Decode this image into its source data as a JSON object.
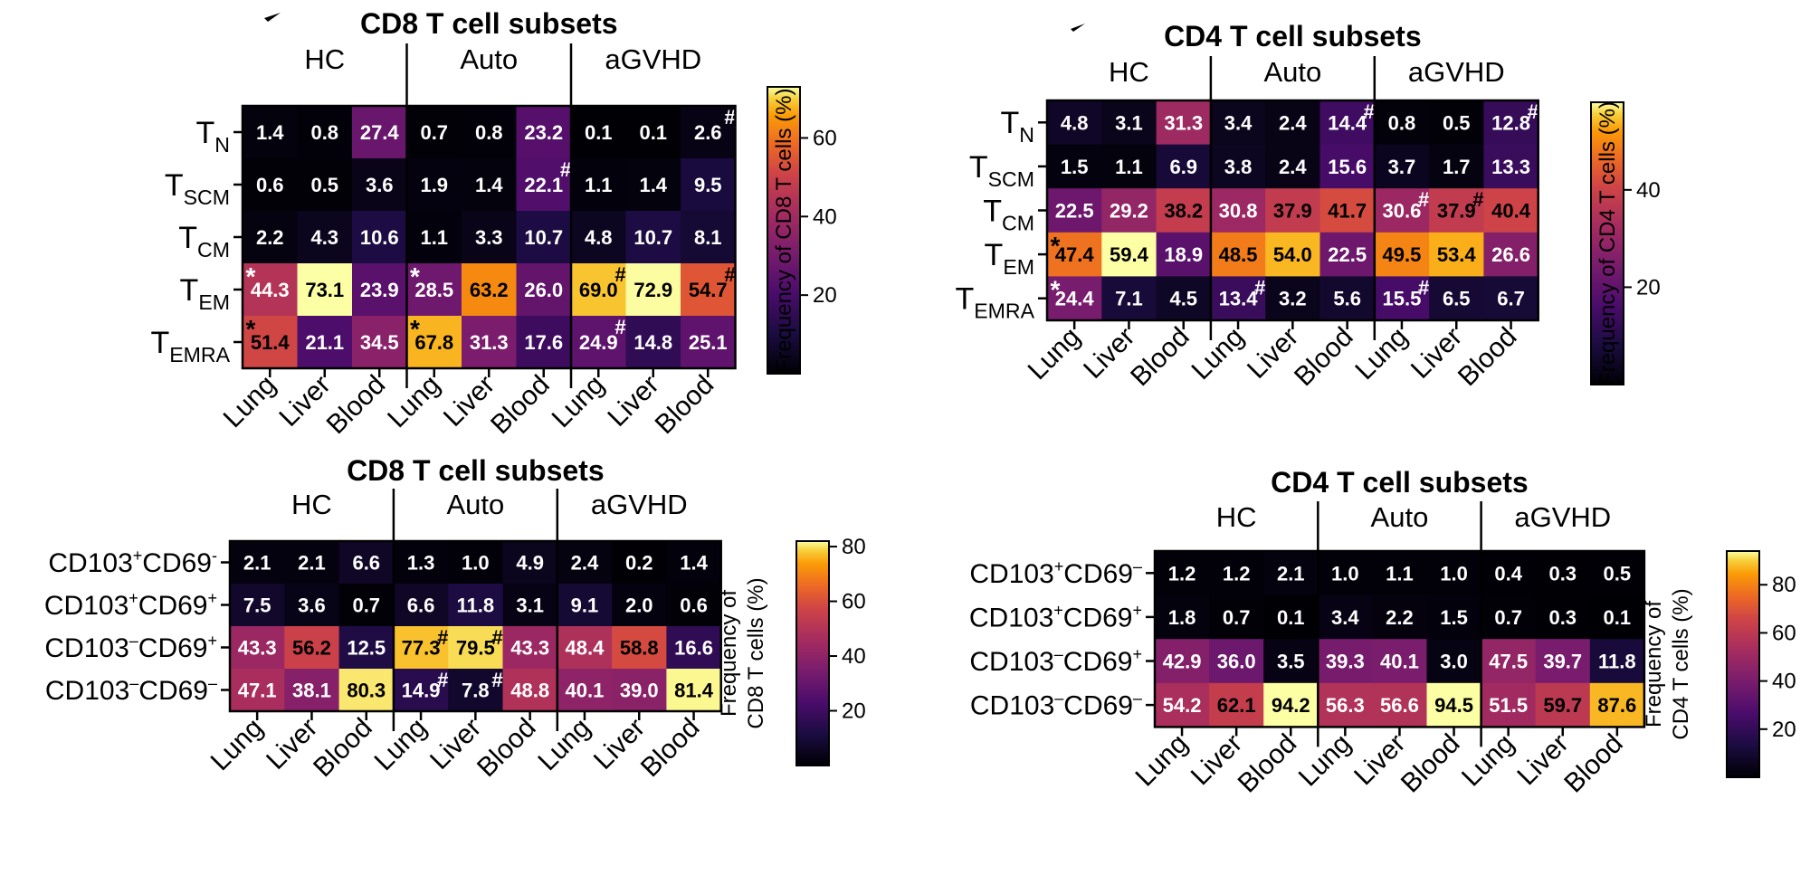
{
  "chart_data": [
    {
      "type": "heatmap",
      "title": "CD8 T cell subsets",
      "groups": [
        "HC",
        "Auto",
        "aGVHD"
      ],
      "categories": [
        "Lung",
        "Liver",
        "Blood",
        "Lung",
        "Liver",
        "Blood",
        "Lung",
        "Liver",
        "Blood"
      ],
      "row_labels": [
        {
          "base": "T",
          "sub": "N",
          "sup": ""
        },
        {
          "base": "T",
          "sub": "SCM",
          "sup": ""
        },
        {
          "base": "T",
          "sub": "CM",
          "sup": ""
        },
        {
          "base": "T",
          "sub": "EM",
          "sup": ""
        },
        {
          "base": "T",
          "sub": "EMRA",
          "sup": ""
        }
      ],
      "values": [
        [
          1.4,
          0.8,
          27.4,
          0.7,
          0.8,
          23.2,
          0.1,
          0.1,
          2.6
        ],
        [
          0.6,
          0.5,
          3.6,
          1.9,
          1.4,
          22.1,
          1.1,
          1.4,
          9.5
        ],
        [
          2.2,
          4.3,
          10.6,
          1.1,
          3.3,
          10.7,
          4.8,
          10.7,
          8.1
        ],
        [
          44.3,
          73.1,
          23.9,
          28.5,
          63.2,
          26.0,
          69.0,
          72.9,
          54.7
        ],
        [
          51.4,
          21.1,
          34.5,
          67.8,
          31.3,
          17.6,
          24.9,
          14.8,
          25.1
        ]
      ],
      "markers": [
        {
          "row": 0,
          "col": 8,
          "symbol": "#"
        },
        {
          "row": 1,
          "col": 5,
          "symbol": "#"
        },
        {
          "row": 3,
          "col": 0,
          "symbol": "*"
        },
        {
          "row": 3,
          "col": 3,
          "symbol": "*"
        },
        {
          "row": 3,
          "col": 6,
          "symbol": "#"
        },
        {
          "row": 3,
          "col": 8,
          "symbol": "#"
        },
        {
          "row": 4,
          "col": 0,
          "symbol": "*"
        },
        {
          "row": 4,
          "col": 3,
          "symbol": "*"
        },
        {
          "row": 4,
          "col": 6,
          "symbol": "#"
        }
      ],
      "colorbar": {
        "label_lines": [
          "Frequency of CD8 T cells (%)"
        ],
        "range": [
          0,
          73
        ],
        "ticks": [
          20,
          40,
          60
        ]
      }
    },
    {
      "type": "heatmap",
      "title": "CD4 T cell subsets",
      "groups": [
        "HC",
        "Auto",
        "aGVHD"
      ],
      "categories": [
        "Lung",
        "Liver",
        "Blood",
        "Lung",
        "Liver",
        "Blood",
        "Lung",
        "Liver",
        "Blood"
      ],
      "row_labels": [
        {
          "base": "T",
          "sub": "N",
          "sup": ""
        },
        {
          "base": "T",
          "sub": "SCM",
          "sup": ""
        },
        {
          "base": "T",
          "sub": "CM",
          "sup": ""
        },
        {
          "base": "T",
          "sub": "EM",
          "sup": ""
        },
        {
          "base": "T",
          "sub": "EMRA",
          "sup": ""
        }
      ],
      "values": [
        [
          4.8,
          3.1,
          31.3,
          3.4,
          2.4,
          14.4,
          0.8,
          0.5,
          12.8
        ],
        [
          1.5,
          1.1,
          6.9,
          3.8,
          2.4,
          15.6,
          3.7,
          1.7,
          13.3
        ],
        [
          22.5,
          29.2,
          38.2,
          30.8,
          37.9,
          41.7,
          30.6,
          37.9,
          40.4
        ],
        [
          47.4,
          59.4,
          18.9,
          48.5,
          54.0,
          22.5,
          49.5,
          53.4,
          26.6
        ],
        [
          24.4,
          7.1,
          4.5,
          13.4,
          3.2,
          5.6,
          15.5,
          6.5,
          6.7
        ]
      ],
      "markers": [
        {
          "row": 0,
          "col": 5,
          "symbol": "#"
        },
        {
          "row": 0,
          "col": 8,
          "symbol": "#"
        },
        {
          "row": 2,
          "col": 6,
          "symbol": "#"
        },
        {
          "row": 2,
          "col": 7,
          "symbol": "#"
        },
        {
          "row": 3,
          "col": 0,
          "symbol": "*"
        },
        {
          "row": 4,
          "col": 0,
          "symbol": "*"
        },
        {
          "row": 4,
          "col": 3,
          "symbol": "#"
        },
        {
          "row": 4,
          "col": 6,
          "symbol": "#"
        }
      ],
      "colorbar": {
        "label_lines": [
          "Frequency of CD4 T cells (%)"
        ],
        "range": [
          0,
          58
        ],
        "ticks": [
          20,
          40
        ]
      }
    },
    {
      "type": "heatmap",
      "title": "CD8 T cell subsets",
      "groups": [
        "HC",
        "Auto",
        "aGVHD"
      ],
      "categories": [
        "Lung",
        "Liver",
        "Blood",
        "Lung",
        "Liver",
        "Blood",
        "Lung",
        "Liver",
        "Blood"
      ],
      "row_labels": [
        {
          "base": "CD103",
          "sup": "+",
          "base2": "CD69",
          "sup2": "-"
        },
        {
          "base": "CD103",
          "sup": "+",
          "base2": "CD69",
          "sup2": "+"
        },
        {
          "base": "CD103",
          "sup": "–",
          "base2": "CD69",
          "sup2": "+"
        },
        {
          "base": "CD103",
          "sup": "–",
          "base2": "CD69",
          "sup2": "–"
        }
      ],
      "values": [
        [
          2.1,
          2.1,
          6.6,
          1.3,
          1.0,
          4.9,
          2.4,
          0.2,
          1.4
        ],
        [
          7.5,
          3.6,
          0.7,
          6.6,
          11.8,
          3.1,
          9.1,
          2.0,
          0.6
        ],
        [
          43.3,
          56.2,
          12.5,
          77.3,
          79.5,
          43.3,
          48.4,
          58.8,
          16.6
        ],
        [
          47.1,
          38.1,
          80.3,
          14.9,
          7.8,
          48.8,
          40.1,
          39.0,
          81.4
        ]
      ],
      "markers": [
        {
          "row": 2,
          "col": 3,
          "symbol": "#"
        },
        {
          "row": 2,
          "col": 4,
          "symbol": "#"
        },
        {
          "row": 3,
          "col": 3,
          "symbol": "#"
        },
        {
          "row": 3,
          "col": 4,
          "symbol": "#"
        }
      ],
      "colorbar": {
        "label_lines": [
          "Frequency of",
          "CD8 T cells (%)"
        ],
        "range": [
          0,
          82
        ],
        "ticks": [
          20,
          40,
          60,
          80
        ]
      }
    },
    {
      "type": "heatmap",
      "title": "CD4 T cell subsets",
      "groups": [
        "HC",
        "Auto",
        "aGVHD"
      ],
      "categories": [
        "Lung",
        "Liver",
        "Blood",
        "Lung",
        "Liver",
        "Blood",
        "Lung",
        "Liver",
        "Blood"
      ],
      "row_labels": [
        {
          "base": "CD103",
          "sup": "+",
          "base2": "CD69",
          "sup2": "–"
        },
        {
          "base": "CD103",
          "sup": "+",
          "base2": "CD69",
          "sup2": "+"
        },
        {
          "base": "CD103",
          "sup": "–",
          "base2": "CD69",
          "sup2": "+"
        },
        {
          "base": "CD103",
          "sup": "–",
          "base2": "CD69",
          "sup2": "–"
        }
      ],
      "values": [
        [
          1.2,
          1.2,
          2.1,
          1.0,
          1.1,
          1.0,
          0.4,
          0.3,
          0.5
        ],
        [
          1.8,
          0.7,
          0.1,
          3.4,
          2.2,
          1.5,
          0.7,
          0.3,
          0.1
        ],
        [
          42.9,
          36.0,
          3.5,
          39.3,
          40.1,
          3.0,
          47.5,
          39.7,
          11.8
        ],
        [
          54.2,
          62.1,
          94.2,
          56.3,
          56.6,
          94.5,
          51.5,
          59.7,
          87.6
        ]
      ],
      "markers": [],
      "colorbar": {
        "label_lines": [
          "Frequency of",
          "CD4 T cells (%)"
        ],
        "range": [
          0,
          94
        ],
        "ticks": [
          20,
          40,
          60,
          80
        ]
      }
    }
  ]
}
